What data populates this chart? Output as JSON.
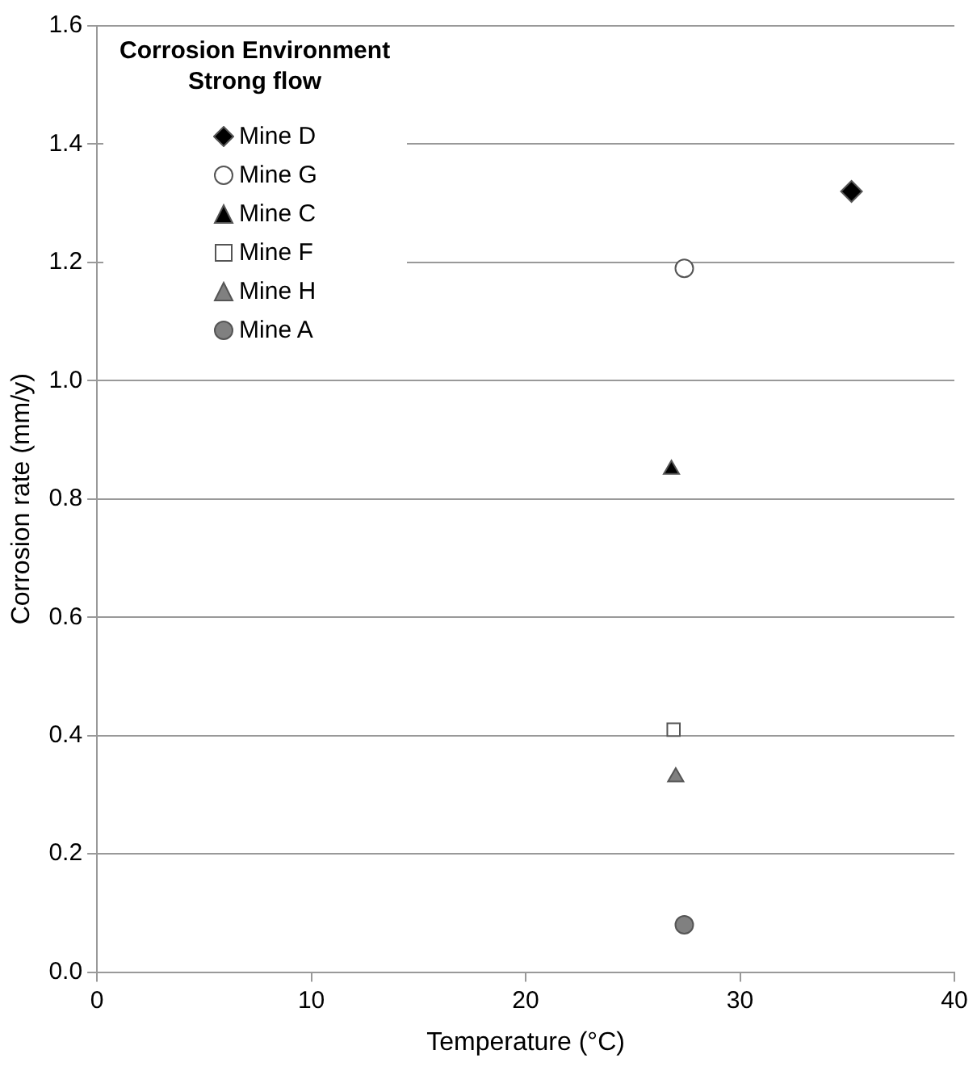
{
  "chart_data": {
    "type": "scatter",
    "xlabel": "Temperature (°C)",
    "ylabel": "Corrosion rate (mm/y)",
    "legend_title": "Corrosion Environment\nStrong flow",
    "legend": "top left",
    "grid": "y",
    "xlim": [
      0,
      40
    ],
    "xticks": [
      0,
      10,
      20,
      30,
      40
    ],
    "ylim": [
      0,
      1.6
    ],
    "yticks": [
      {
        "value": 0,
        "label": "0.0"
      },
      {
        "value": 0.2,
        "label": "0.2"
      },
      {
        "value": 0.4,
        "label": "0.4"
      },
      {
        "value": 0.6,
        "label": "0.6"
      },
      {
        "value": 0.8,
        "label": "0.8"
      },
      {
        "value": 1.0,
        "label": "1.0"
      },
      {
        "value": 1.2,
        "label": "1.2"
      },
      {
        "value": 1.4,
        "label": "1.4"
      },
      {
        "value": 1.6,
        "label": "1.6"
      }
    ],
    "series": [
      {
        "name": "Mine D",
        "color": "#000000",
        "marker": "diamond",
        "x": [
          35.2
        ],
        "values": [
          1.32
        ]
      },
      {
        "name": "Mine G",
        "color": "#ffffff",
        "marker": "circle",
        "x": [
          27.4
        ],
        "values": [
          1.19
        ]
      },
      {
        "name": "Mine C",
        "color": "#000000",
        "marker": "triangle",
        "x": [
          26.8
        ],
        "values": [
          0.85
        ]
      },
      {
        "name": "Mine F",
        "color": "#ffffff",
        "marker": "square",
        "x": [
          26.9
        ],
        "values": [
          0.41
        ]
      },
      {
        "name": "Mine H",
        "color": "#808080",
        "marker": "triangle",
        "x": [
          27.0
        ],
        "values": [
          0.33
        ]
      },
      {
        "name": "Mine A",
        "color": "#808080",
        "marker": "circle",
        "x": [
          27.4
        ],
        "values": [
          0.08
        ]
      }
    ]
  }
}
